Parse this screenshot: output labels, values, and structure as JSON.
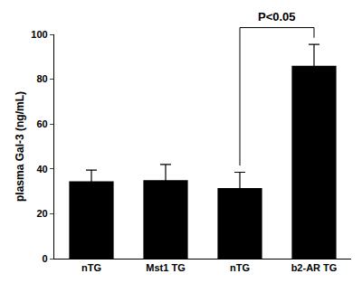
{
  "chart_data": {
    "type": "bar",
    "categories": [
      "nTG",
      "Mst1 TG",
      "nTG",
      "b2-AR TG"
    ],
    "values": [
      34.5,
      35,
      31.5,
      86
    ],
    "errors": [
      5,
      7,
      7,
      9.5
    ],
    "color": "#000000",
    "ylabel": "plasma Gal-3 (ng/mL)",
    "ylim": [
      0,
      100
    ],
    "yticks": [
      0,
      20,
      40,
      60,
      80,
      100
    ],
    "grid": false,
    "annotations": [
      {
        "text": "P<0.05",
        "from": 2,
        "to": 3
      }
    ]
  }
}
